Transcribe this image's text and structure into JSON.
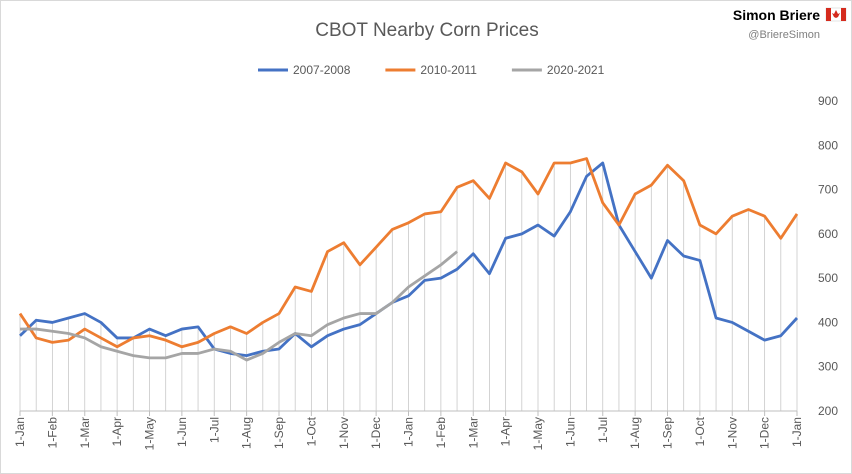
{
  "chart_data": {
    "type": "line",
    "title": "CBOT Nearby Corn Prices",
    "brand": "Simon Briere",
    "handle": "@BriereSimon",
    "categories": [
      "1-Jan",
      null,
      "1-Feb",
      null,
      "1-Mar",
      null,
      "1-Apr",
      null,
      "1-May",
      null,
      "1-Jun",
      null,
      "1-Jul",
      null,
      "1-Aug",
      null,
      "1-Sep",
      null,
      "1-Oct",
      null,
      "1-Nov",
      null,
      "1-Dec",
      null,
      "1-Jan",
      null,
      "1-Feb",
      null,
      "1-Mar",
      null,
      "1-Apr",
      null,
      "1-May",
      null,
      "1-Jun",
      null,
      "1-Jul",
      null,
      "1-Aug",
      null,
      "1-Sep",
      null,
      "1-Oct",
      null,
      "1-Nov",
      null,
      "1-Dec",
      null,
      "1-Jan"
    ],
    "series": [
      {
        "name": "2007-2008",
        "color": "#4472c4",
        "values": [
          370,
          405,
          400,
          410,
          420,
          400,
          365,
          365,
          385,
          370,
          385,
          390,
          340,
          330,
          325,
          335,
          340,
          375,
          345,
          370,
          385,
          395,
          420,
          445,
          460,
          495,
          500,
          520,
          555,
          510,
          590,
          600,
          620,
          595,
          650,
          730,
          760,
          620,
          560,
          500,
          585,
          550,
          540,
          410,
          400,
          380,
          360,
          370,
          410
        ]
      },
      {
        "name": "2010-2011",
        "color": "#ed7d31",
        "values": [
          420,
          365,
          355,
          360,
          385,
          365,
          345,
          365,
          370,
          360,
          345,
          355,
          375,
          390,
          375,
          400,
          420,
          480,
          470,
          560,
          580,
          530,
          570,
          610,
          625,
          645,
          650,
          705,
          720,
          680,
          760,
          740,
          690,
          760,
          760,
          770,
          670,
          620,
          690,
          710,
          755,
          720,
          620,
          600,
          640,
          655,
          640,
          590,
          645
        ]
      },
      {
        "name": "2020-2021",
        "color": "#a5a5a5",
        "values": [
          385,
          385,
          380,
          375,
          365,
          345,
          335,
          325,
          320,
          320,
          330,
          330,
          340,
          335,
          315,
          330,
          355,
          375,
          370,
          395,
          410,
          420,
          420,
          445,
          480,
          505,
          530,
          560,
          null,
          null,
          null,
          null,
          null,
          null,
          null,
          null,
          null,
          null,
          null,
          null,
          null,
          null,
          null,
          null,
          null,
          null,
          null,
          null,
          null
        ]
      }
    ],
    "ylim": [
      200,
      900
    ],
    "yticks": [
      200,
      300,
      400,
      500,
      600,
      700,
      800,
      900
    ],
    "legend": "top"
  }
}
